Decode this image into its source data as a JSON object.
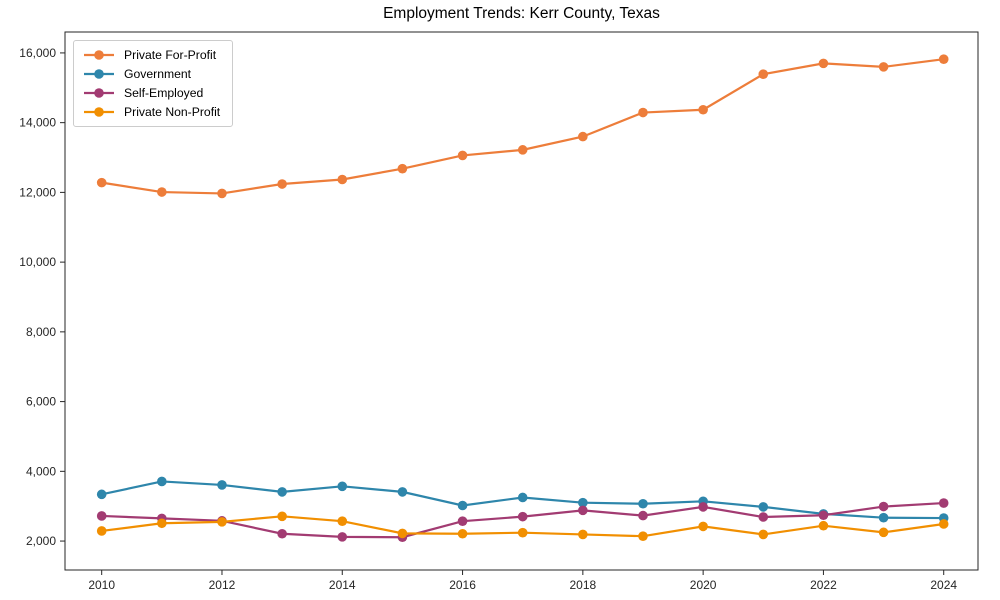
{
  "chart_data": {
    "type": "line",
    "title": "Employment Trends: Kerr County, Texas",
    "x": [
      2010,
      2011,
      2012,
      2013,
      2014,
      2015,
      2016,
      2017,
      2018,
      2019,
      2020,
      2021,
      2022,
      2023,
      2024
    ],
    "series": [
      {
        "name": "Private For-Profit",
        "color": "#ed7d3a",
        "values": [
          12280,
          12010,
          11970,
          12240,
          12370,
          12680,
          13060,
          13220,
          13600,
          14290,
          14370,
          15390,
          15700,
          15600,
          15820
        ]
      },
      {
        "name": "Government",
        "color": "#2e86ab",
        "values": [
          3340,
          3710,
          3610,
          3410,
          3570,
          3410,
          3020,
          3250,
          3100,
          3070,
          3140,
          2980,
          2780,
          2670,
          2660
        ]
      },
      {
        "name": "Self-Employed",
        "color": "#a23b72",
        "values": [
          2720,
          2650,
          2580,
          2210,
          2120,
          2110,
          2570,
          2700,
          2880,
          2730,
          2980,
          2690,
          2740,
          2990,
          3090
        ]
      },
      {
        "name": "Private Non-Profit",
        "color": "#f18f01",
        "values": [
          2290,
          2510,
          2550,
          2710,
          2570,
          2220,
          2210,
          2240,
          2190,
          2140,
          2420,
          2190,
          2440,
          2250,
          2490
        ]
      }
    ],
    "xticks": [
      2010,
      2012,
      2014,
      2016,
      2018,
      2020,
      2022,
      2024
    ],
    "yticks": [
      2000,
      4000,
      6000,
      8000,
      10000,
      12000,
      14000,
      16000
    ],
    "xlim": [
      2009.39,
      2024.57
    ],
    "ylim": [
      1170,
      16600
    ],
    "legend_position": "upper left",
    "grid": false,
    "frame_color": "#262626"
  }
}
